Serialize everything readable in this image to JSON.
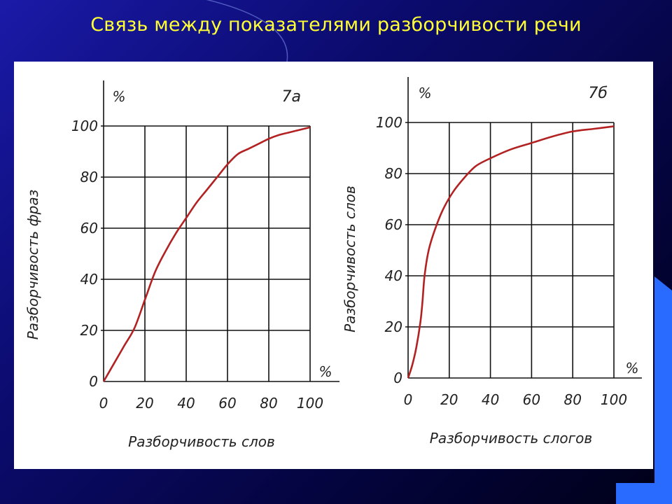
{
  "slide": {
    "title": "Связь между показателями разборчивости речи"
  },
  "chart_data": [
    {
      "type": "line",
      "title": "7а",
      "xlabel": "Разборчивость слов",
      "ylabel": "Разборчивость фраз",
      "x_unit": "%",
      "y_unit": "%",
      "xlim": [
        0,
        100
      ],
      "ylim": [
        0,
        100
      ],
      "x_ticks": [
        0,
        20,
        40,
        60,
        80,
        100
      ],
      "y_ticks": [
        0,
        20,
        40,
        60,
        80,
        100
      ],
      "grid": true,
      "series": [
        {
          "color": "#b22222",
          "x": [
            0,
            5,
            10,
            15,
            20,
            25,
            30,
            35,
            40,
            45,
            50,
            55,
            60,
            65,
            70,
            75,
            80,
            85,
            90,
            95,
            100
          ],
          "values": [
            0,
            7,
            14,
            21,
            32,
            43,
            51,
            58,
            64,
            70,
            75,
            80,
            85,
            89,
            91,
            93,
            95,
            96.5,
            97.5,
            98.5,
            99.5
          ]
        }
      ]
    },
    {
      "type": "line",
      "title": "7б",
      "xlabel": "Разборчивость слогов",
      "ylabel": "Разборчивость слов",
      "x_unit": "%",
      "y_unit": "%",
      "xlim": [
        0,
        100
      ],
      "ylim": [
        0,
        100
      ],
      "x_ticks": [
        0,
        20,
        40,
        60,
        80,
        100
      ],
      "y_ticks": [
        0,
        20,
        40,
        60,
        80,
        100
      ],
      "grid": true,
      "series": [
        {
          "color": "#b22222",
          "x": [
            0,
            2,
            4,
            6,
            7,
            8,
            10,
            13,
            17,
            22,
            28,
            33,
            40,
            50,
            60,
            70,
            80,
            90,
            100
          ],
          "values": [
            0,
            5,
            12,
            22,
            30,
            40,
            50,
            58,
            66,
            73,
            79,
            83,
            86,
            89.5,
            92,
            94.5,
            96.5,
            97.5,
            98.5
          ]
        }
      ]
    }
  ]
}
